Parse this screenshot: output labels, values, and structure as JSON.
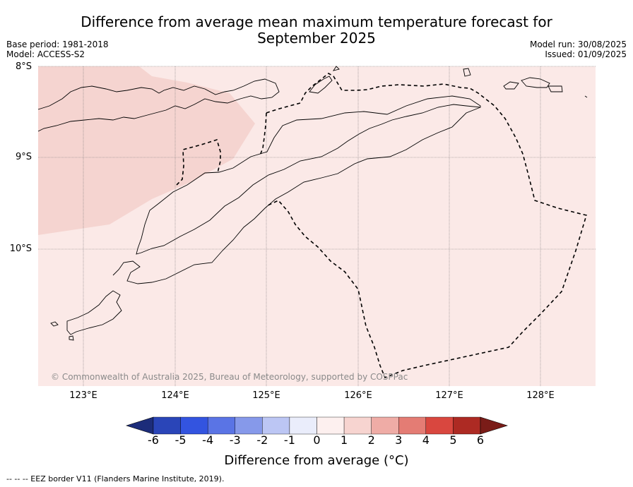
{
  "header": {
    "title_line1": "Difference from average mean maximum temperature forecast for",
    "title_line2": "September 2025",
    "base_period": "Base period: 1981-2018",
    "model": "Model: ACCESS-S2",
    "model_run": "Model run: 30/08/2025",
    "issued": "Issued: 01/09/2025"
  },
  "map": {
    "lat_labels": [
      "8°S",
      "9°S",
      "10°S"
    ],
    "lon_labels": [
      "123°E",
      "124°E",
      "125°E",
      "126°E",
      "127°E",
      "128°E"
    ],
    "copyright": "© Commonwealth of Australia 2025, Bureau of Meteorology, supported by COSPPac",
    "fill_colors": {
      "anomaly_0_1": "#fbe9e7",
      "anomaly_1_2": "#f5d4d0"
    }
  },
  "colorbar": {
    "tick_labels": [
      "-6",
      "-5",
      "-4",
      "-3",
      "-2",
      "-1",
      "0",
      "1",
      "2",
      "3",
      "4",
      "5",
      "6"
    ],
    "colors": [
      "#1c2c7a",
      "#2a45b8",
      "#3354e0",
      "#5a74e5",
      "#8699ea",
      "#bcc6f4",
      "#eaedfb",
      "#fdf0ef",
      "#f7d4d0",
      "#efaca6",
      "#e47c74",
      "#d9473f",
      "#ad2a23",
      "#7a1c18"
    ],
    "title": "Difference from average (°C)"
  },
  "footnote": "--  --  -- EEZ border V11 (Flanders Marine Institute, 2019)."
}
